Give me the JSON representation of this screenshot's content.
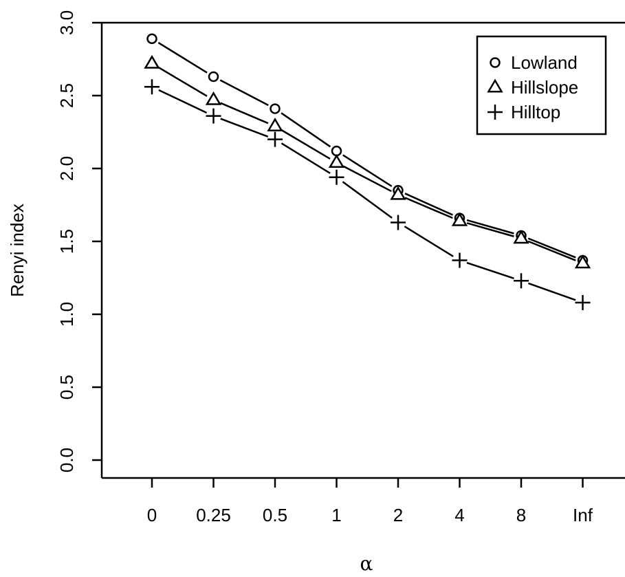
{
  "chart_data": {
    "type": "line",
    "title": "",
    "xlabel": "α",
    "ylabel": "Renyi index",
    "categories": [
      "0",
      "0.25",
      "0.5",
      "1",
      "2",
      "4",
      "8",
      "Inf"
    ],
    "ylim": [
      0.0,
      3.0
    ],
    "y_ticks": [
      "0.0",
      "0.5",
      "1.0",
      "1.5",
      "2.0",
      "2.5",
      "3.0"
    ],
    "grid": false,
    "legend_position": "top-right",
    "series": [
      {
        "name": "Lowland",
        "marker": "circle",
        "values": [
          2.89,
          2.63,
          2.41,
          2.12,
          1.85,
          1.66,
          1.54,
          1.37
        ]
      },
      {
        "name": "Hillslope",
        "marker": "triangle",
        "values": [
          2.72,
          2.47,
          2.29,
          2.04,
          1.82,
          1.64,
          1.52,
          1.35
        ]
      },
      {
        "name": "Hilltop",
        "marker": "plus",
        "values": [
          2.56,
          2.36,
          2.2,
          1.94,
          1.63,
          1.37,
          1.23,
          1.08
        ]
      }
    ]
  }
}
